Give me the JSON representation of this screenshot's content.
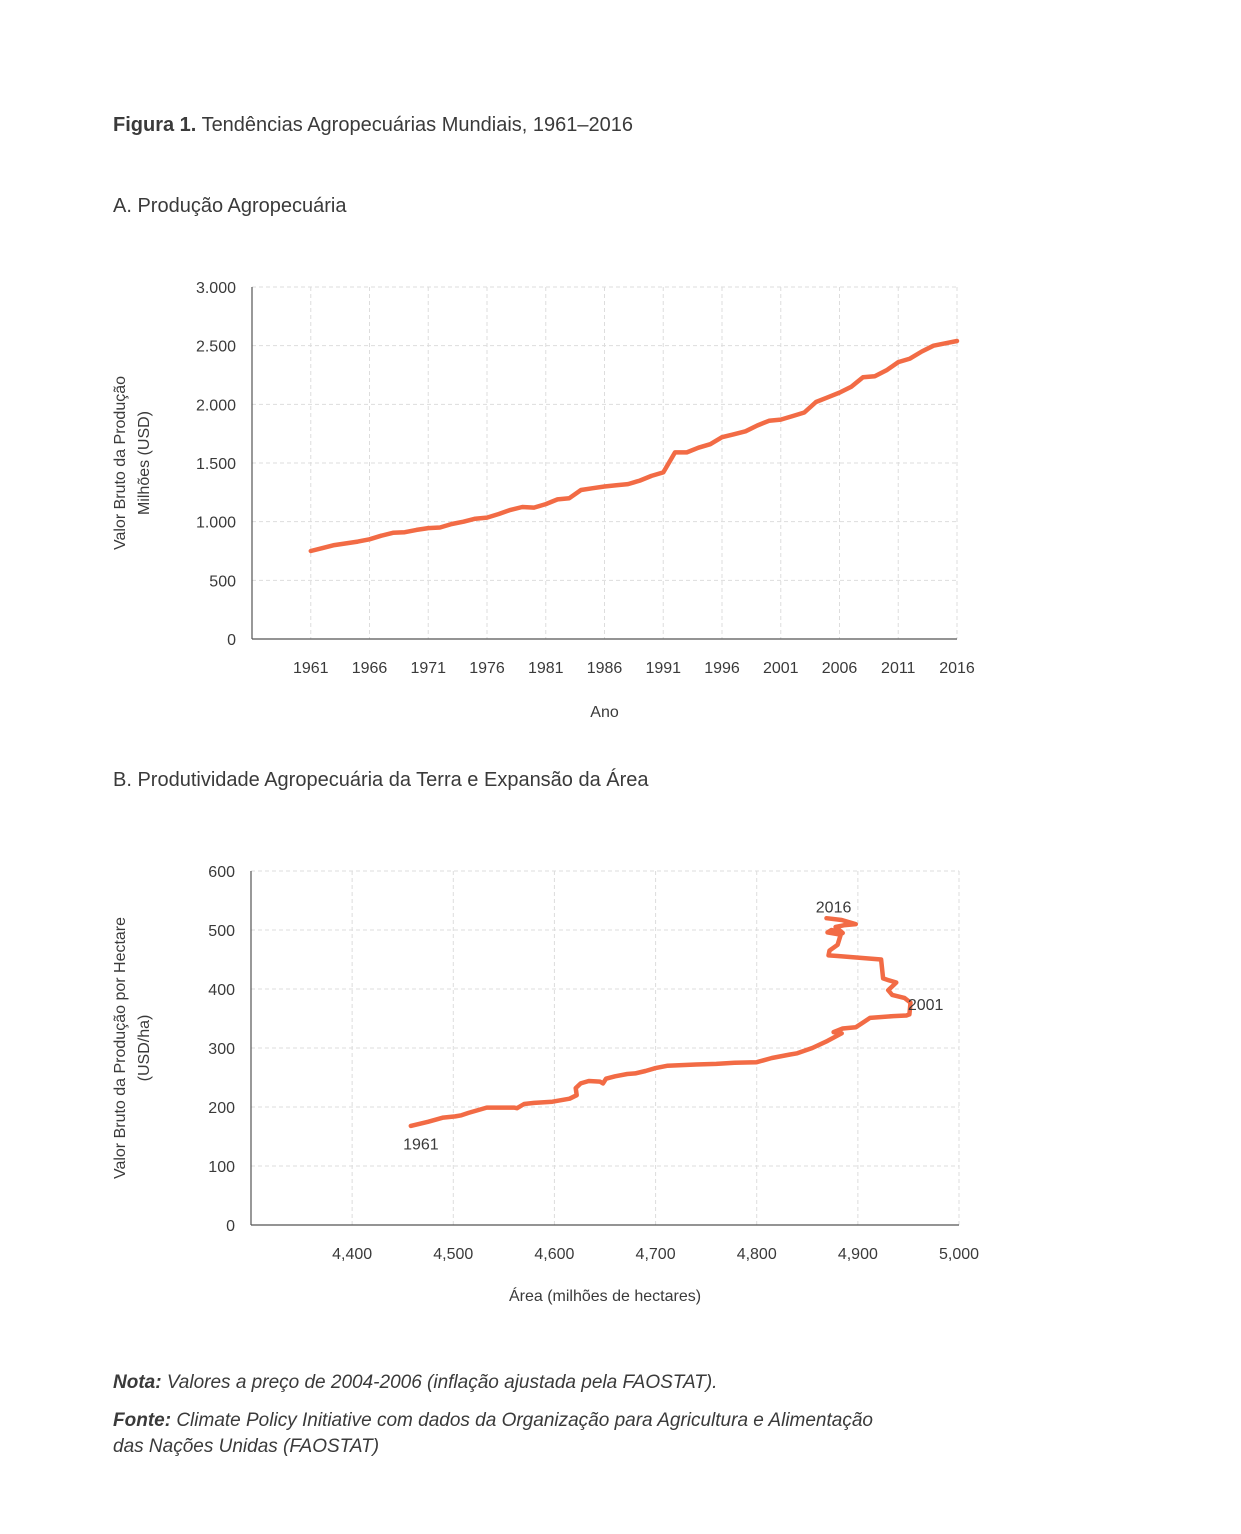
{
  "figure": {
    "label": "Figura 1.",
    "title": "Tendências Agropecuárias Mundiais, 1961–2016"
  },
  "colors": {
    "line": "#f26b45",
    "axis": "#555555",
    "grid": "#dddddd"
  },
  "chart_data": [
    {
      "type": "line",
      "panel_title": "A. Produção Agropecuária",
      "xlabel": "Ano",
      "ylabel_lines": [
        "Valor Bruto da Produção",
        "Milhões (USD)"
      ],
      "xlim": [
        1956,
        2016
      ],
      "ylim": [
        0,
        3000
      ],
      "y_ticks": [
        0,
        500,
        1000,
        1500,
        2000,
        2500,
        3000
      ],
      "y_tick_labels": [
        "0",
        "500",
        "1.000",
        "1.500",
        "2.000",
        "2.500",
        "3.000"
      ],
      "x_ticks": [
        1961,
        1966,
        1971,
        1976,
        1981,
        1986,
        1991,
        1996,
        2001,
        2006,
        2011,
        2016
      ],
      "x_tick_labels": [
        "1961",
        "1966",
        "1971",
        "1976",
        "1981",
        "1986",
        "1991",
        "1996",
        "2001",
        "2006",
        "2011",
        "2016"
      ],
      "grid": true,
      "series": [
        {
          "x": [
            1961,
            1962,
            1963,
            1964,
            1965,
            1966,
            1967,
            1968,
            1969,
            1970,
            1971,
            1972,
            1973,
            1974,
            1975,
            1976,
            1977,
            1978,
            1979,
            1980,
            1981,
            1982,
            1983,
            1984,
            1985,
            1986,
            1987,
            1988,
            1989,
            1990,
            1991,
            1992,
            1993,
            1994,
            1995,
            1996,
            1997,
            1998,
            1999,
            2000,
            2001,
            2002,
            2003,
            2004,
            2005,
            2006,
            2007,
            2008,
            2009,
            2010,
            2011,
            2012,
            2013,
            2014,
            2015,
            2016
          ],
          "y": [
            750,
            775,
            800,
            815,
            830,
            850,
            880,
            905,
            910,
            930,
            945,
            950,
            980,
            1000,
            1025,
            1035,
            1065,
            1100,
            1125,
            1120,
            1150,
            1190,
            1200,
            1270,
            1285,
            1300,
            1310,
            1320,
            1350,
            1390,
            1420,
            1590,
            1590,
            1630,
            1660,
            1720,
            1745,
            1770,
            1820,
            1860,
            1870,
            1900,
            1930,
            2020,
            2060,
            2100,
            2150,
            2230,
            2240,
            2290,
            2360,
            2390,
            2450,
            2500,
            2520,
            2540
          ]
        }
      ]
    },
    {
      "type": "line",
      "panel_title": "B. Produtividade Agropecuária da Terra e Expansão da Área",
      "xlabel": "Área (milhões de hectares)",
      "ylabel_lines": [
        "Valor Bruto da Produção por Hectare",
        "(USD/ha)"
      ],
      "xlim": [
        4300,
        5000
      ],
      "ylim": [
        0,
        600
      ],
      "y_ticks": [
        0,
        100,
        200,
        300,
        400,
        500,
        600
      ],
      "y_tick_labels": [
        "0",
        "100",
        "200",
        "300",
        "400",
        "500",
        "600"
      ],
      "x_ticks": [
        4400,
        4500,
        4600,
        4700,
        4800,
        4900,
        5000
      ],
      "x_tick_labels": [
        "4,400",
        "4,500",
        "4,600",
        "4,700",
        "4,800",
        "4,900",
        "5,000"
      ],
      "grid": true,
      "annotations": [
        {
          "text": "1961",
          "x": 4468,
          "y": 138
        },
        {
          "text": "2001",
          "x": 4967,
          "y": 375
        },
        {
          "text": "2016",
          "x": 4876,
          "y": 540
        }
      ],
      "series": [
        {
          "x": [
            4458,
            4475,
            4490,
            4502,
            4508,
            4515,
            4533,
            4548,
            4560,
            4563,
            4570,
            4580,
            4598,
            4615,
            4622,
            4621,
            4626,
            4634,
            4645,
            4648,
            4651,
            4660,
            4672,
            4680,
            4690,
            4700,
            4712,
            4740,
            4760,
            4778,
            4800,
            4815,
            4833,
            4840,
            4855,
            4870,
            4884,
            4876,
            4885,
            4898,
            4905,
            4912,
            4935,
            4948,
            4951,
            4952,
            4946,
            4934,
            4930,
            4938,
            4930,
            4925,
            4923,
            4880,
            4871,
            4872,
            4880,
            4883,
            4870,
            4874,
            4885,
            4878,
            4886,
            4898,
            4884,
            4869
          ],
          "y": [
            168,
            175,
            182,
            184,
            186,
            190,
            199,
            199,
            199,
            198,
            205,
            207,
            209,
            214,
            220,
            232,
            240,
            244,
            243,
            240,
            248,
            252,
            256,
            257,
            261,
            266,
            270,
            272,
            273,
            275,
            276,
            283,
            289,
            291,
            300,
            312,
            325,
            327,
            333,
            335,
            343,
            351,
            354,
            355,
            357,
            377,
            385,
            390,
            398,
            411,
            415,
            418,
            450,
            456,
            457,
            465,
            475,
            492,
            496,
            500,
            495,
            505,
            508,
            510,
            517,
            520
          ]
        }
      ]
    }
  ],
  "notes": {
    "nota_label": "Nota:",
    "nota_text": " Valores a preço de 2004-2006 (inflação ajustada pela FAOSTAT).",
    "fonte_label": "Fonte:",
    "fonte_line1": " Climate Policy Initiative com dados da Organização para Agricultura e Alimentação",
    "fonte_line2": "das Nações Unidas (FAOSTAT)"
  }
}
